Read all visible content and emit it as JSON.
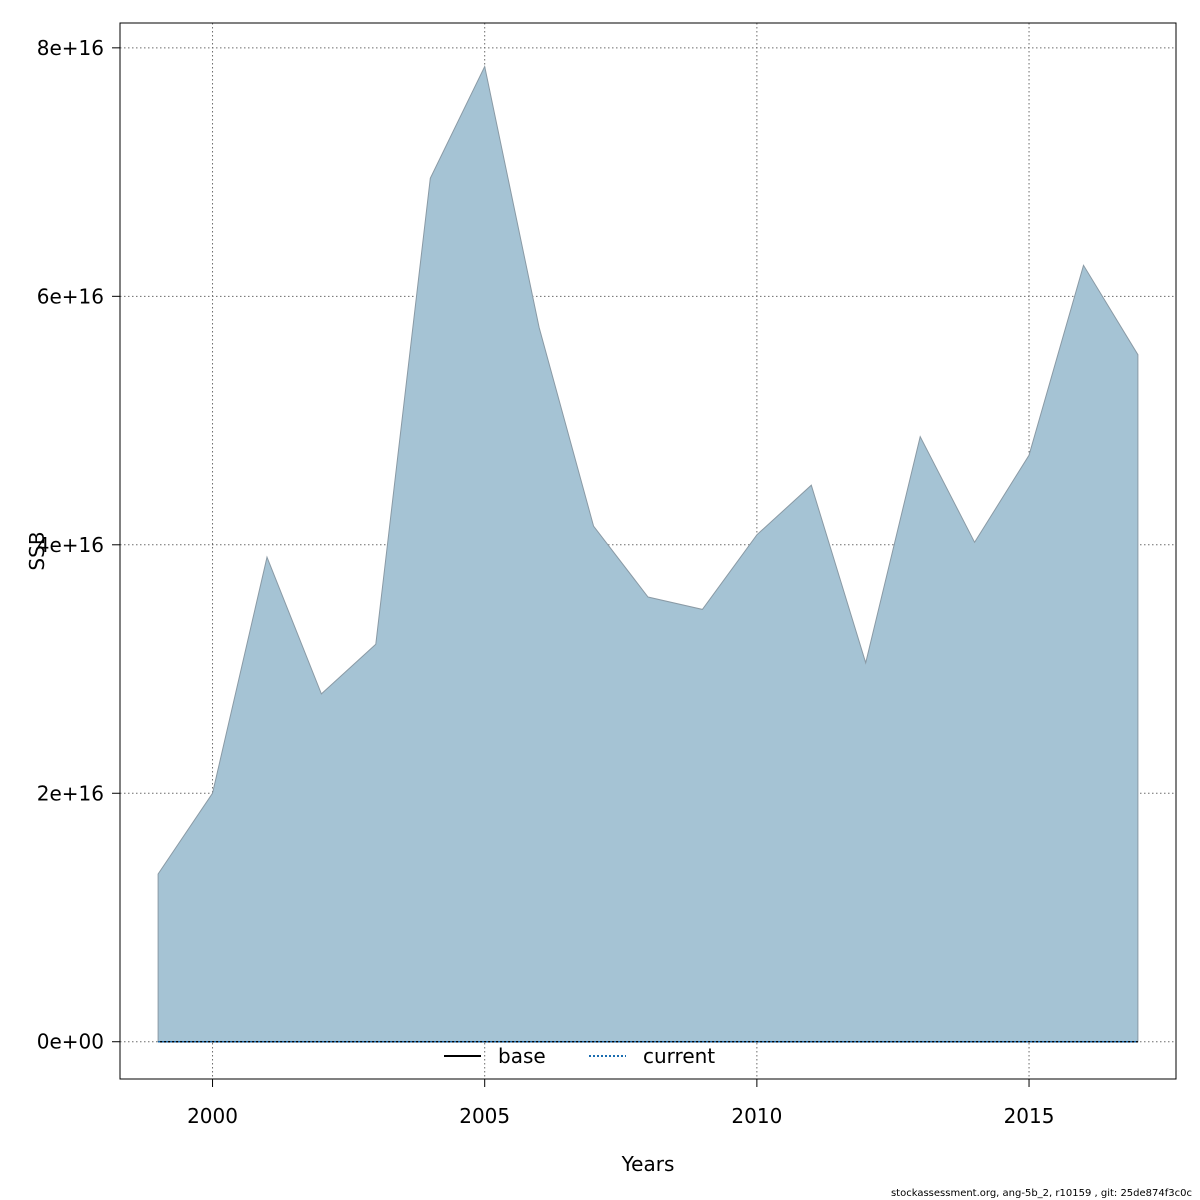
{
  "chart_data": {
    "type": "area",
    "xlabel": "Years",
    "ylabel": "SSB",
    "xlim": [
      1998.3,
      2017.7
    ],
    "ylim": [
      -3000000000000000.0,
      8.2e+16
    ],
    "x_ticks": [
      2000,
      2005,
      2010,
      2015
    ],
    "x_tick_labels": [
      "2000",
      "2005",
      "2010",
      "2015"
    ],
    "y_ticks": [
      0,
      2e+16,
      4e+16,
      6e+16,
      8e+16
    ],
    "y_tick_labels": [
      "0e+00",
      "2e+16",
      "4e+16",
      "6e+16",
      "8e+16"
    ],
    "grid": true,
    "legend": {
      "placement": "bottom-center"
    },
    "series": [
      {
        "name": "base",
        "style": "solid",
        "color": "#000000",
        "x": [
          1999,
          2000,
          2001,
          2002,
          2003,
          2004,
          2005,
          2006,
          2007,
          2008,
          2009,
          2010,
          2011,
          2012,
          2013,
          2014,
          2015,
          2016,
          2017
        ],
        "values": [
          0,
          0,
          0,
          0,
          0,
          0,
          0,
          0,
          0,
          0,
          0,
          0,
          0,
          0,
          0,
          0,
          0,
          0,
          0
        ]
      },
      {
        "name": "current",
        "style": "dotted",
        "color": "#1a6db0",
        "x": [
          1999,
          2000,
          2001,
          2002,
          2003,
          2004,
          2005,
          2006,
          2007,
          2008,
          2009,
          2010,
          2011,
          2012,
          2013,
          2014,
          2015,
          2016,
          2017
        ],
        "values": [
          0,
          0,
          0,
          0,
          0,
          0,
          0,
          0,
          0,
          0,
          0,
          0,
          0,
          0,
          0,
          0,
          0,
          0,
          0
        ]
      }
    ],
    "band": {
      "fill": "#a5c3d4",
      "stroke": "#8a9aa5",
      "x": [
        1999,
        2000,
        2001,
        2002,
        2003,
        2004,
        2005,
        2006,
        2007,
        2008,
        2009,
        2010,
        2011,
        2012,
        2013,
        2014,
        2015,
        2016,
        2017
      ],
      "upper": [
        1.35e+16,
        2e+16,
        3.9e+16,
        2.8e+16,
        3.2e+16,
        6.95e+16,
        7.85e+16,
        5.75e+16,
        4.15e+16,
        3.58e+16,
        3.48e+16,
        4.08e+16,
        4.48e+16,
        3.05e+16,
        4.87e+16,
        4.02e+16,
        4.72e+16,
        6.25e+16,
        5.53e+16
      ],
      "lower": [
        0,
        0,
        0,
        0,
        0,
        0,
        0,
        0,
        0,
        0,
        0,
        0,
        0,
        0,
        0,
        0,
        0,
        0,
        0
      ]
    }
  },
  "footer": {
    "note": "stockassessment.org, ang-5b_2, r10159 , git: 25de874f3c0c"
  }
}
